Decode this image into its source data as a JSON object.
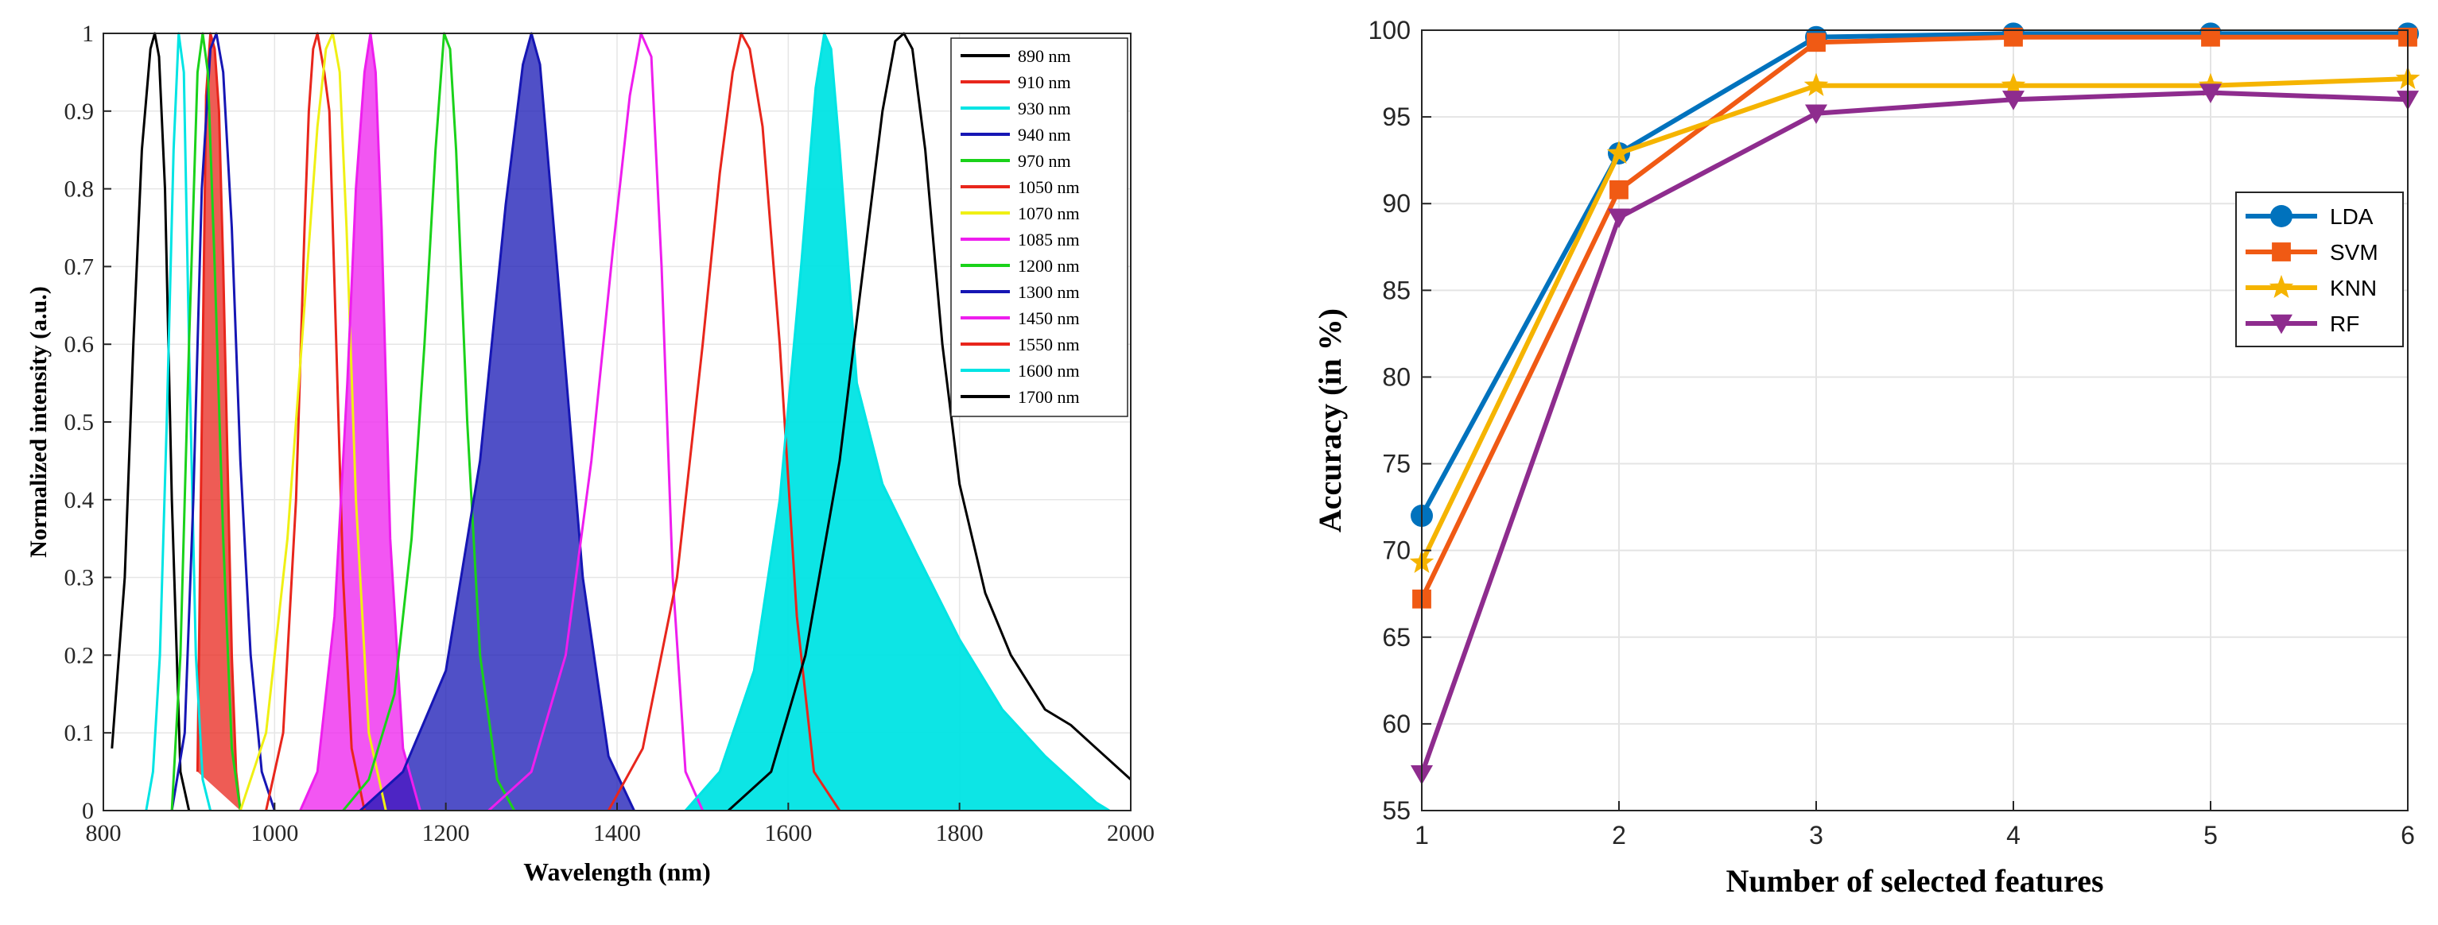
{
  "chart_data": [
    {
      "type": "area",
      "xlabel": "Wavelength (nm)",
      "ylabel": "Normalized intensity (a.u.)",
      "xlim": [
        800,
        2000
      ],
      "ylim": [
        0,
        1
      ],
      "xticks": [
        "800",
        "1000",
        "1200",
        "1400",
        "1600",
        "1800",
        "2000"
      ],
      "yticks": [
        "0",
        "0.1",
        "0.2",
        "0.3",
        "0.4",
        "0.5",
        "0.6",
        "0.7",
        "0.8",
        "0.9",
        "1"
      ],
      "grid": true,
      "legend_position": "top-right",
      "series": [
        {
          "name": "890 nm",
          "color": "#000000",
          "filled": false,
          "x": [
            810,
            825,
            835,
            845,
            855,
            860,
            865,
            872,
            880,
            890,
            900
          ],
          "y": [
            0.08,
            0.3,
            0.6,
            0.85,
            0.98,
            1.0,
            0.97,
            0.8,
            0.4,
            0.05,
            0.0
          ]
        },
        {
          "name": "910 nm",
          "color": "#e8261c",
          "filled": true,
          "x": [
            910,
            915,
            920,
            925,
            930,
            935,
            940,
            945,
            950,
            955,
            960
          ],
          "y": [
            0.05,
            0.5,
            0.92,
            1.0,
            0.98,
            0.9,
            0.7,
            0.45,
            0.2,
            0.05,
            0.0
          ]
        },
        {
          "name": "930 nm",
          "color": "#00e4e4",
          "filled": false,
          "x": [
            850,
            858,
            866,
            874,
            882,
            888,
            894,
            900,
            908,
            916,
            925
          ],
          "y": [
            0.0,
            0.05,
            0.2,
            0.5,
            0.85,
            1.0,
            0.95,
            0.6,
            0.2,
            0.04,
            0.0
          ]
        },
        {
          "name": "940 nm",
          "color": "#1616b4",
          "filled": false,
          "x": [
            880,
            895,
            905,
            915,
            925,
            932,
            940,
            950,
            960,
            972,
            985,
            1000
          ],
          "y": [
            0.0,
            0.1,
            0.4,
            0.8,
            0.98,
            1.0,
            0.95,
            0.75,
            0.45,
            0.2,
            0.05,
            0.0
          ]
        },
        {
          "name": "970 nm",
          "color": "#1ad21a",
          "filled": false,
          "x": [
            880,
            890,
            900,
            910,
            916,
            922,
            930,
            940,
            950,
            960
          ],
          "y": [
            0.0,
            0.2,
            0.6,
            0.95,
            1.0,
            0.95,
            0.7,
            0.35,
            0.08,
            0.0
          ]
        },
        {
          "name": "1050 nm",
          "color": "#e8261c",
          "filled": false,
          "x": [
            990,
            1010,
            1025,
            1035,
            1040,
            1045,
            1050,
            1058,
            1064,
            1072,
            1080,
            1090,
            1105
          ],
          "y": [
            0.0,
            0.1,
            0.4,
            0.75,
            0.9,
            0.98,
            1.0,
            0.95,
            0.9,
            0.6,
            0.3,
            0.08,
            0.0
          ]
        },
        {
          "name": "1070 nm",
          "color": "#f0f014",
          "filled": false,
          "x": [
            960,
            990,
            1015,
            1035,
            1050,
            1060,
            1068,
            1076,
            1084,
            1095,
            1110,
            1130
          ],
          "y": [
            0.0,
            0.1,
            0.35,
            0.65,
            0.88,
            0.98,
            1.0,
            0.95,
            0.75,
            0.4,
            0.1,
            0.0
          ]
        },
        {
          "name": "1085 nm",
          "color": "#ee1eee",
          "filled": true,
          "x": [
            1030,
            1050,
            1070,
            1085,
            1095,
            1105,
            1112,
            1118,
            1125,
            1135,
            1150,
            1170
          ],
          "y": [
            0.0,
            0.05,
            0.25,
            0.55,
            0.8,
            0.95,
            1.0,
            0.95,
            0.75,
            0.35,
            0.08,
            0.0
          ]
        },
        {
          "name": "1200 nm",
          "color": "#1ad21a",
          "filled": false,
          "x": [
            1080,
            1110,
            1140,
            1160,
            1175,
            1188,
            1198,
            1205,
            1212,
            1225,
            1240,
            1260,
            1280
          ],
          "y": [
            0.0,
            0.04,
            0.15,
            0.35,
            0.6,
            0.85,
            1.0,
            0.98,
            0.85,
            0.5,
            0.2,
            0.04,
            0.0
          ]
        },
        {
          "name": "1300 nm",
          "color": "#1616b4",
          "filled": true,
          "x": [
            1100,
            1150,
            1200,
            1240,
            1270,
            1290,
            1300,
            1310,
            1330,
            1360,
            1390,
            1420
          ],
          "y": [
            0.0,
            0.05,
            0.18,
            0.45,
            0.78,
            0.96,
            1.0,
            0.96,
            0.7,
            0.3,
            0.07,
            0.0
          ]
        },
        {
          "name": "1450 nm",
          "color": "#ee1eee",
          "filled": false,
          "x": [
            1250,
            1300,
            1340,
            1370,
            1395,
            1415,
            1428,
            1440,
            1452,
            1465,
            1480,
            1500
          ],
          "y": [
            0.0,
            0.05,
            0.2,
            0.45,
            0.72,
            0.92,
            1.0,
            0.97,
            0.7,
            0.3,
            0.05,
            0.0
          ]
        },
        {
          "name": "1550 nm",
          "color": "#e8261c",
          "filled": false,
          "x": [
            1390,
            1430,
            1470,
            1500,
            1520,
            1535,
            1545,
            1555,
            1570,
            1590,
            1610,
            1630,
            1660
          ],
          "y": [
            0.0,
            0.08,
            0.3,
            0.6,
            0.82,
            0.95,
            1.0,
            0.98,
            0.88,
            0.6,
            0.25,
            0.05,
            0.0
          ]
        },
        {
          "name": "1600 nm",
          "color": "#00e4e4",
          "filled": true,
          "x": [
            1480,
            1520,
            1560,
            1590,
            1615,
            1632,
            1642,
            1650,
            1660,
            1680,
            1710,
            1750,
            1800,
            1850,
            1900,
            1940,
            1960,
            1975
          ],
          "y": [
            0.0,
            0.05,
            0.18,
            0.4,
            0.7,
            0.93,
            1.0,
            0.98,
            0.85,
            0.55,
            0.42,
            0.33,
            0.22,
            0.13,
            0.07,
            0.03,
            0.01,
            0.0
          ]
        },
        {
          "name": "1700 nm",
          "color": "#000000",
          "filled": false,
          "x": [
            1530,
            1580,
            1620,
            1660,
            1690,
            1710,
            1725,
            1735,
            1745,
            1760,
            1780,
            1800,
            1830,
            1860,
            1900,
            1930,
            1960,
            2000
          ],
          "y": [
            0.0,
            0.05,
            0.2,
            0.45,
            0.72,
            0.9,
            0.99,
            1.0,
            0.98,
            0.85,
            0.6,
            0.42,
            0.28,
            0.2,
            0.13,
            0.11,
            0.08,
            0.04
          ]
        }
      ]
    },
    {
      "type": "line",
      "xlabel": "Number of selected features",
      "ylabel": "Accuracy (in %)",
      "xlim": [
        1,
        6
      ],
      "ylim": [
        55,
        100
      ],
      "xticks": [
        "1",
        "2",
        "3",
        "4",
        "5",
        "6"
      ],
      "yticks": [
        "55",
        "60",
        "65",
        "70",
        "75",
        "80",
        "85",
        "90",
        "95",
        "100"
      ],
      "grid": true,
      "legend_position": "right",
      "x": [
        1,
        2,
        3,
        4,
        5,
        6
      ],
      "series": [
        {
          "name": "LDA",
          "color": "#0072bd",
          "marker": "circle",
          "values": [
            72.0,
            92.9,
            99.6,
            99.8,
            99.8,
            99.8
          ]
        },
        {
          "name": "SVM",
          "color": "#f05a14",
          "marker": "square",
          "values": [
            67.2,
            90.8,
            99.3,
            99.6,
            99.6,
            99.6
          ]
        },
        {
          "name": "KNN",
          "color": "#f5b400",
          "marker": "star",
          "values": [
            69.3,
            92.9,
            96.8,
            96.8,
            96.8,
            97.2
          ]
        },
        {
          "name": "RF",
          "color": "#8e2c8e",
          "marker": "triangle-down",
          "values": [
            57.1,
            89.2,
            95.2,
            96.0,
            96.4,
            96.0
          ]
        }
      ]
    }
  ]
}
